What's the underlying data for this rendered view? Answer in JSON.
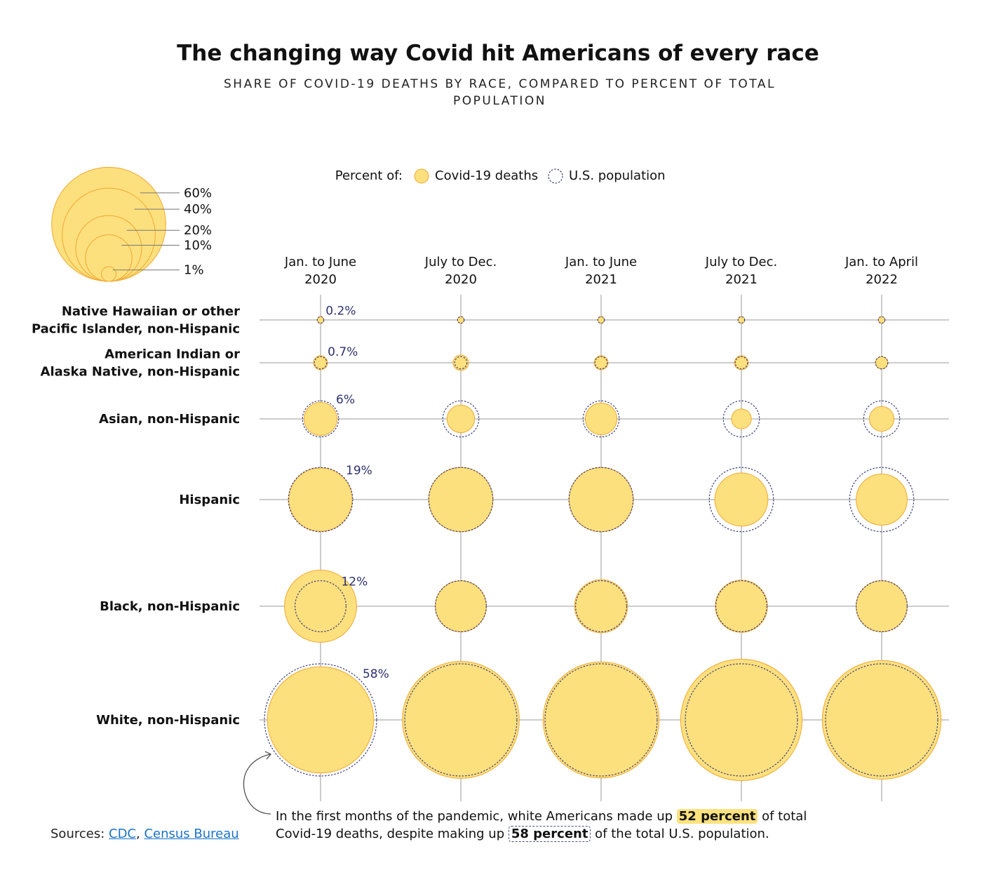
{
  "title": "The changing way Covid hit Americans of every race",
  "subtitle": "SHARE OF COVID-19 DEATHS BY RACE, COMPARED TO PERCENT OF TOTAL POPULATION",
  "legend": {
    "prefix": "Percent of:",
    "deaths_label": "Covid-19 deaths",
    "population_label": "U.S. population",
    "size_scale": [
      "60%",
      "40%",
      "20%",
      "10%",
      "1%"
    ],
    "size_values": [
      60,
      40,
      20,
      10,
      1
    ]
  },
  "colors": {
    "deaths_fill": "#fde07e",
    "deaths_stroke": "#f0a830",
    "population_stroke": "#3b3f7a",
    "grid": "#999999",
    "pop_label": "#2d3170"
  },
  "chart_data": {
    "type": "bubble-matrix",
    "title": "The changing way Covid hit Americans of every race",
    "columns": [
      "Jan. to June 2020",
      "July to Dec. 2020",
      "Jan. to June 2021",
      "July to Dec. 2021",
      "Jan. to April 2022"
    ],
    "column_labels": [
      [
        "Jan. to June",
        "2020"
      ],
      [
        "July to Dec.",
        "2020"
      ],
      [
        "Jan. to June",
        "2021"
      ],
      [
        "July to Dec.",
        "2021"
      ],
      [
        "Jan. to April",
        "2022"
      ]
    ],
    "rows": [
      {
        "name": "Native Hawaiian or other Pacific Islander, non-Hispanic",
        "label_lines": [
          "Native Hawaiian or other",
          "Pacific Islander, non-Hispanic"
        ],
        "population": 0.2,
        "population_label": "0.2%",
        "deaths": [
          0.2,
          0.2,
          0.2,
          0.2,
          0.2
        ]
      },
      {
        "name": "American Indian or Alaska Native, non-Hispanic",
        "label_lines": [
          "American Indian or",
          "Alaska Native, non-Hispanic"
        ],
        "population": 0.7,
        "population_label": "0.7%",
        "deaths": [
          0.9,
          1.1,
          0.9,
          0.9,
          0.7
        ]
      },
      {
        "name": "Asian, non-Hispanic",
        "label_lines": [
          "Asian, non-Hispanic"
        ],
        "population": 6,
        "population_label": "6%",
        "deaths": [
          5,
          3.5,
          4.6,
          1.8,
          2.8
        ]
      },
      {
        "name": "Hispanic",
        "label_lines": [
          "Hispanic"
        ],
        "population": 19,
        "population_label": "19%",
        "deaths": [
          18.5,
          19,
          19,
          13,
          12
        ]
      },
      {
        "name": "Black, non-Hispanic",
        "label_lines": [
          "Black, non-Hispanic"
        ],
        "population": 12,
        "population_label": "12%",
        "deaths": [
          24,
          12,
          13,
          12.5,
          12
        ]
      },
      {
        "name": "White, non-Hispanic",
        "label_lines": [
          "White, non-Hispanic"
        ],
        "population": 58,
        "population_label": "58%",
        "deaths": [
          52,
          63,
          62,
          68,
          65
        ]
      }
    ]
  },
  "note": {
    "text_before": "In the first months of the pandemic, white Americans made up ",
    "deaths_value": "52 percent",
    "text_middle": " of total Covid-19 deaths, despite making up ",
    "population_value": "58 percent",
    "text_after": " of the total U.S. population."
  },
  "sources": {
    "prefix": "Sources: ",
    "cdc": "CDC",
    "separator": ", ",
    "census": "Census Bureau"
  }
}
